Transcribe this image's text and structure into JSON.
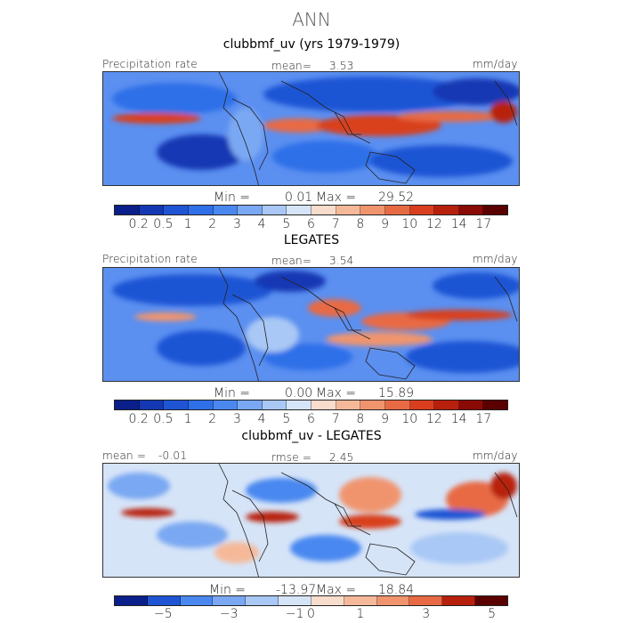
{
  "title": "ANN",
  "colors": {
    "precip_scale": [
      "#0a1f8a",
      "#1438b4",
      "#1f55d4",
      "#2f6fe8",
      "#4a88f0",
      "#7aa8f2",
      "#a9c8f5",
      "#d6e4f8",
      "#f8dccc",
      "#f5b99a",
      "#f0946e",
      "#e86a44",
      "#d93f1e",
      "#b8200e",
      "#8a0a05",
      "#5a0000"
    ],
    "diff_scale": [
      "#0a1f8a",
      "#1f55d4",
      "#4a88f0",
      "#7aa8f2",
      "#a9c8f5",
      "#d6e4f8",
      "#f8dccc",
      "#f5b99a",
      "#f0946e",
      "#e86a44",
      "#b8200e",
      "#5a0000"
    ],
    "land_outline": "#222222"
  },
  "panels": [
    {
      "heading": "clubbmf_uv (yrs 1979-1979)",
      "left_label": "Precipitation rate",
      "center_label": "mean=",
      "center_value": "3.53",
      "right_label": "mm/day",
      "min_label": "Min =",
      "min_value": "0.01",
      "max_label": "Max =",
      "max_value": "29.52",
      "ticks": [
        "0.2",
        "0.5",
        "1",
        "2",
        "3",
        "4",
        "5",
        "6",
        "7",
        "8",
        "9",
        "10",
        "12",
        "14",
        "17"
      ]
    },
    {
      "heading": "LEGATES",
      "left_label": "Precipitation rate",
      "center_label": "mean=",
      "center_value": "3.54",
      "right_label": "mm/day",
      "min_label": "Min =",
      "min_value": "0.00",
      "max_label": "Max =",
      "max_value": "15.89",
      "ticks": [
        "0.2",
        "0.5",
        "1",
        "2",
        "3",
        "4",
        "5",
        "6",
        "7",
        "8",
        "9",
        "10",
        "12",
        "14",
        "17"
      ]
    },
    {
      "heading": "clubbmf_uv - LEGATES",
      "left_label": "mean =",
      "left_value": "-0.01",
      "center_label": "rmse =",
      "center_value": "2.45",
      "right_label": "mm/day",
      "min_label": "Min =",
      "min_value": "-13.97",
      "max_label": "Max =",
      "max_value": "18.84",
      "ticks": [
        "-5",
        "-3",
        "-1",
        "0",
        "1",
        "3",
        "5"
      ]
    }
  ]
}
